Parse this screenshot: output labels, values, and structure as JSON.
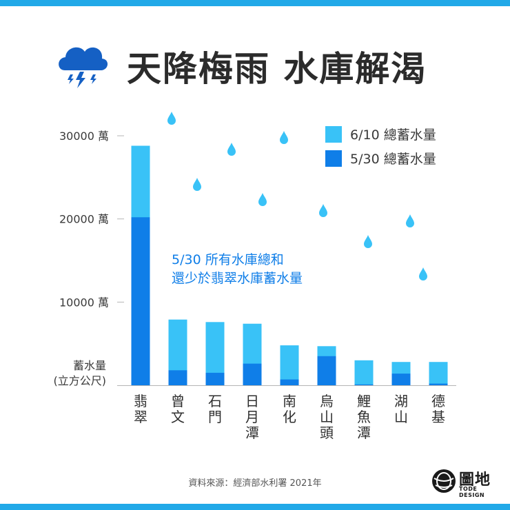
{
  "title": "天降梅雨 水庫解渴",
  "source": "資料來源：經濟部水利署 2021年",
  "logo": {
    "name": "圖地",
    "sub": "TODE DESIGN"
  },
  "icons": {
    "header": "storm-cloud-icon",
    "decor": "raindrop-icon",
    "logo": "globe-icon"
  },
  "colors": {
    "series_6_10": "#39c2f7",
    "series_5_30": "#0f7ee8",
    "annotation": "#0f7ee8",
    "band": "#22a9e8"
  },
  "chart_data": {
    "type": "bar",
    "title": "天降梅雨 水庫解渴",
    "ylabel": [
      "蓄水量",
      "(立方公尺)"
    ],
    "yticks": [
      "10000 萬",
      "20000 萬",
      "30000 萬"
    ],
    "ytick_values": [
      10000,
      20000,
      30000
    ],
    "ylim": [
      0,
      30000
    ],
    "categories": [
      "翡翠",
      "曾文",
      "石門",
      "日月潭",
      "南化",
      "烏山頭",
      "鯉魚潭",
      "湖山",
      "德基"
    ],
    "series": [
      {
        "name": "6/10 總蓄水量",
        "values": [
          28800,
          7900,
          7600,
          7400,
          4800,
          4700,
          3000,
          2800,
          2800
        ]
      },
      {
        "name": "5/30 總蓄水量",
        "values": [
          20200,
          1800,
          1500,
          2600,
          700,
          3500,
          100,
          1400,
          200
        ]
      }
    ],
    "legend": "top-right",
    "annotation": [
      "5/30 所有水庫總和",
      "還少於翡翠水庫蓄水量"
    ],
    "grid": false
  }
}
